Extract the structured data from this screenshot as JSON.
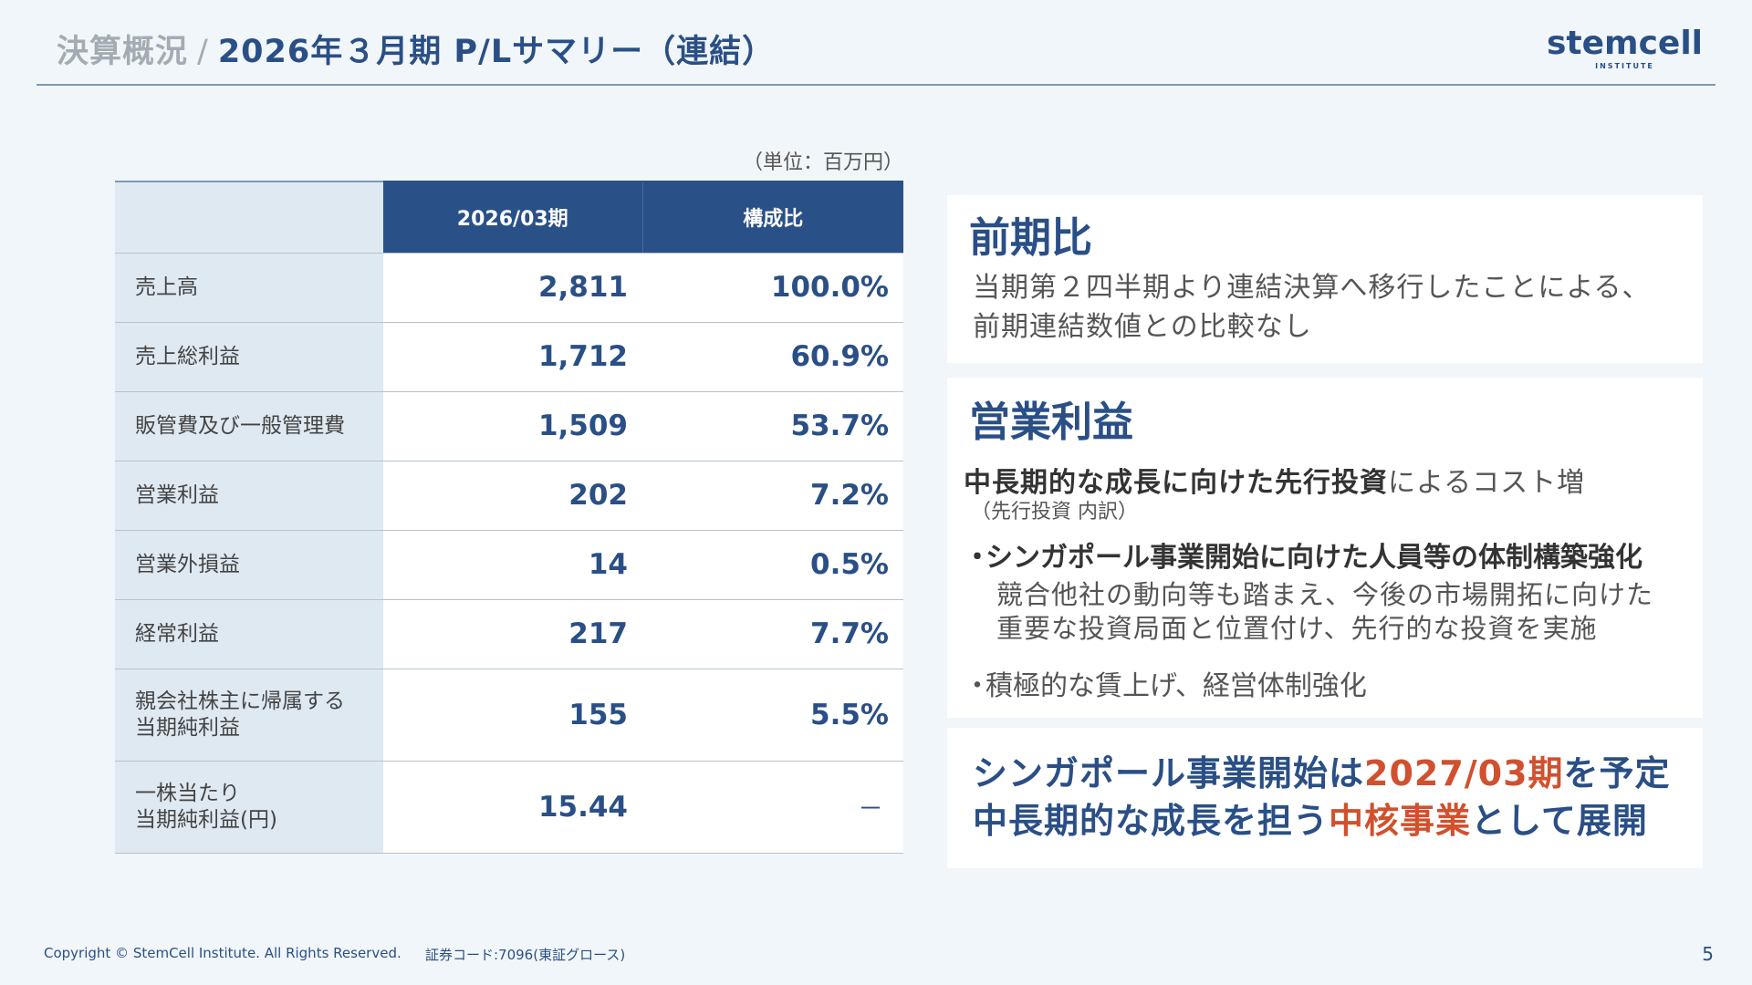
{
  "header": {
    "crumb": "決算概況",
    "separator": "/",
    "title": "2026年３月期 P/Lサマリー（連結）",
    "logo_word": "stemcell",
    "logo_sub": "INSTITUTE"
  },
  "unit_note": "（単位：百万円）",
  "table": {
    "headers": [
      "",
      "2026/03期",
      "構成比"
    ],
    "rows": [
      {
        "label_lines": [
          "売上高"
        ],
        "value": "2,811",
        "ratio": "100.0%"
      },
      {
        "label_lines": [
          "売上総利益"
        ],
        "value": "1,712",
        "ratio": "60.9%"
      },
      {
        "label_lines": [
          "販管費及び一般管理費"
        ],
        "value": "1,509",
        "ratio": "53.7%"
      },
      {
        "label_lines": [
          "営業利益"
        ],
        "value": "202",
        "ratio": "7.2%"
      },
      {
        "label_lines": [
          "営業外損益"
        ],
        "value": "14",
        "ratio": "0.5%"
      },
      {
        "label_lines": [
          "経常利益"
        ],
        "value": "217",
        "ratio": "7.7%"
      },
      {
        "label_lines": [
          "親会社株主に帰属する",
          "当期純利益"
        ],
        "value": "155",
        "ratio": "5.5%"
      },
      {
        "label_lines": [
          "一株当たり",
          "当期純利益(円)"
        ],
        "value": "15.44",
        "ratio": "－"
      }
    ]
  },
  "box_prior": {
    "title": "前期比",
    "line1": "当期第２四半期より連結決算へ移行したことによる、",
    "line2": "前期連結数値との比較なし"
  },
  "box_op": {
    "title": "営業利益",
    "lead_bold": "中長期的な成長に向けた先行投資",
    "lead_rest": "によるコスト増",
    "paren": "（先行投資 内訳）",
    "bullet_mark": "・",
    "bullet1": "シンガポール事業開始に向けた人員等の体制構築強化",
    "detail1": "競合他社の動向等も踏まえ、今後の市場開拓に向けた",
    "detail2": "重要な投資局面と位置付け、先行的な投資を実施",
    "bullet2": "積極的な賃上げ、経営体制強化"
  },
  "box_emph": {
    "l1_a": "シンガポール事業開始は",
    "l1_hl": "2027/03期",
    "l1_b": "を予定",
    "l2_a": "中長期的な成長を担う",
    "l2_hl": "中核事業",
    "l2_b": "として展開"
  },
  "footer": {
    "copyright": "Copyright © StemCell Institute. All Rights Reserved.",
    "code": "証券コード:7096(東証グロース)",
    "page": "5"
  },
  "colors": {
    "navy": "#2a4f86",
    "header_fill": "#2a5088",
    "label_fill": "#dfe9f1",
    "accent": "#d1502d",
    "background": "#f1f6fa"
  }
}
